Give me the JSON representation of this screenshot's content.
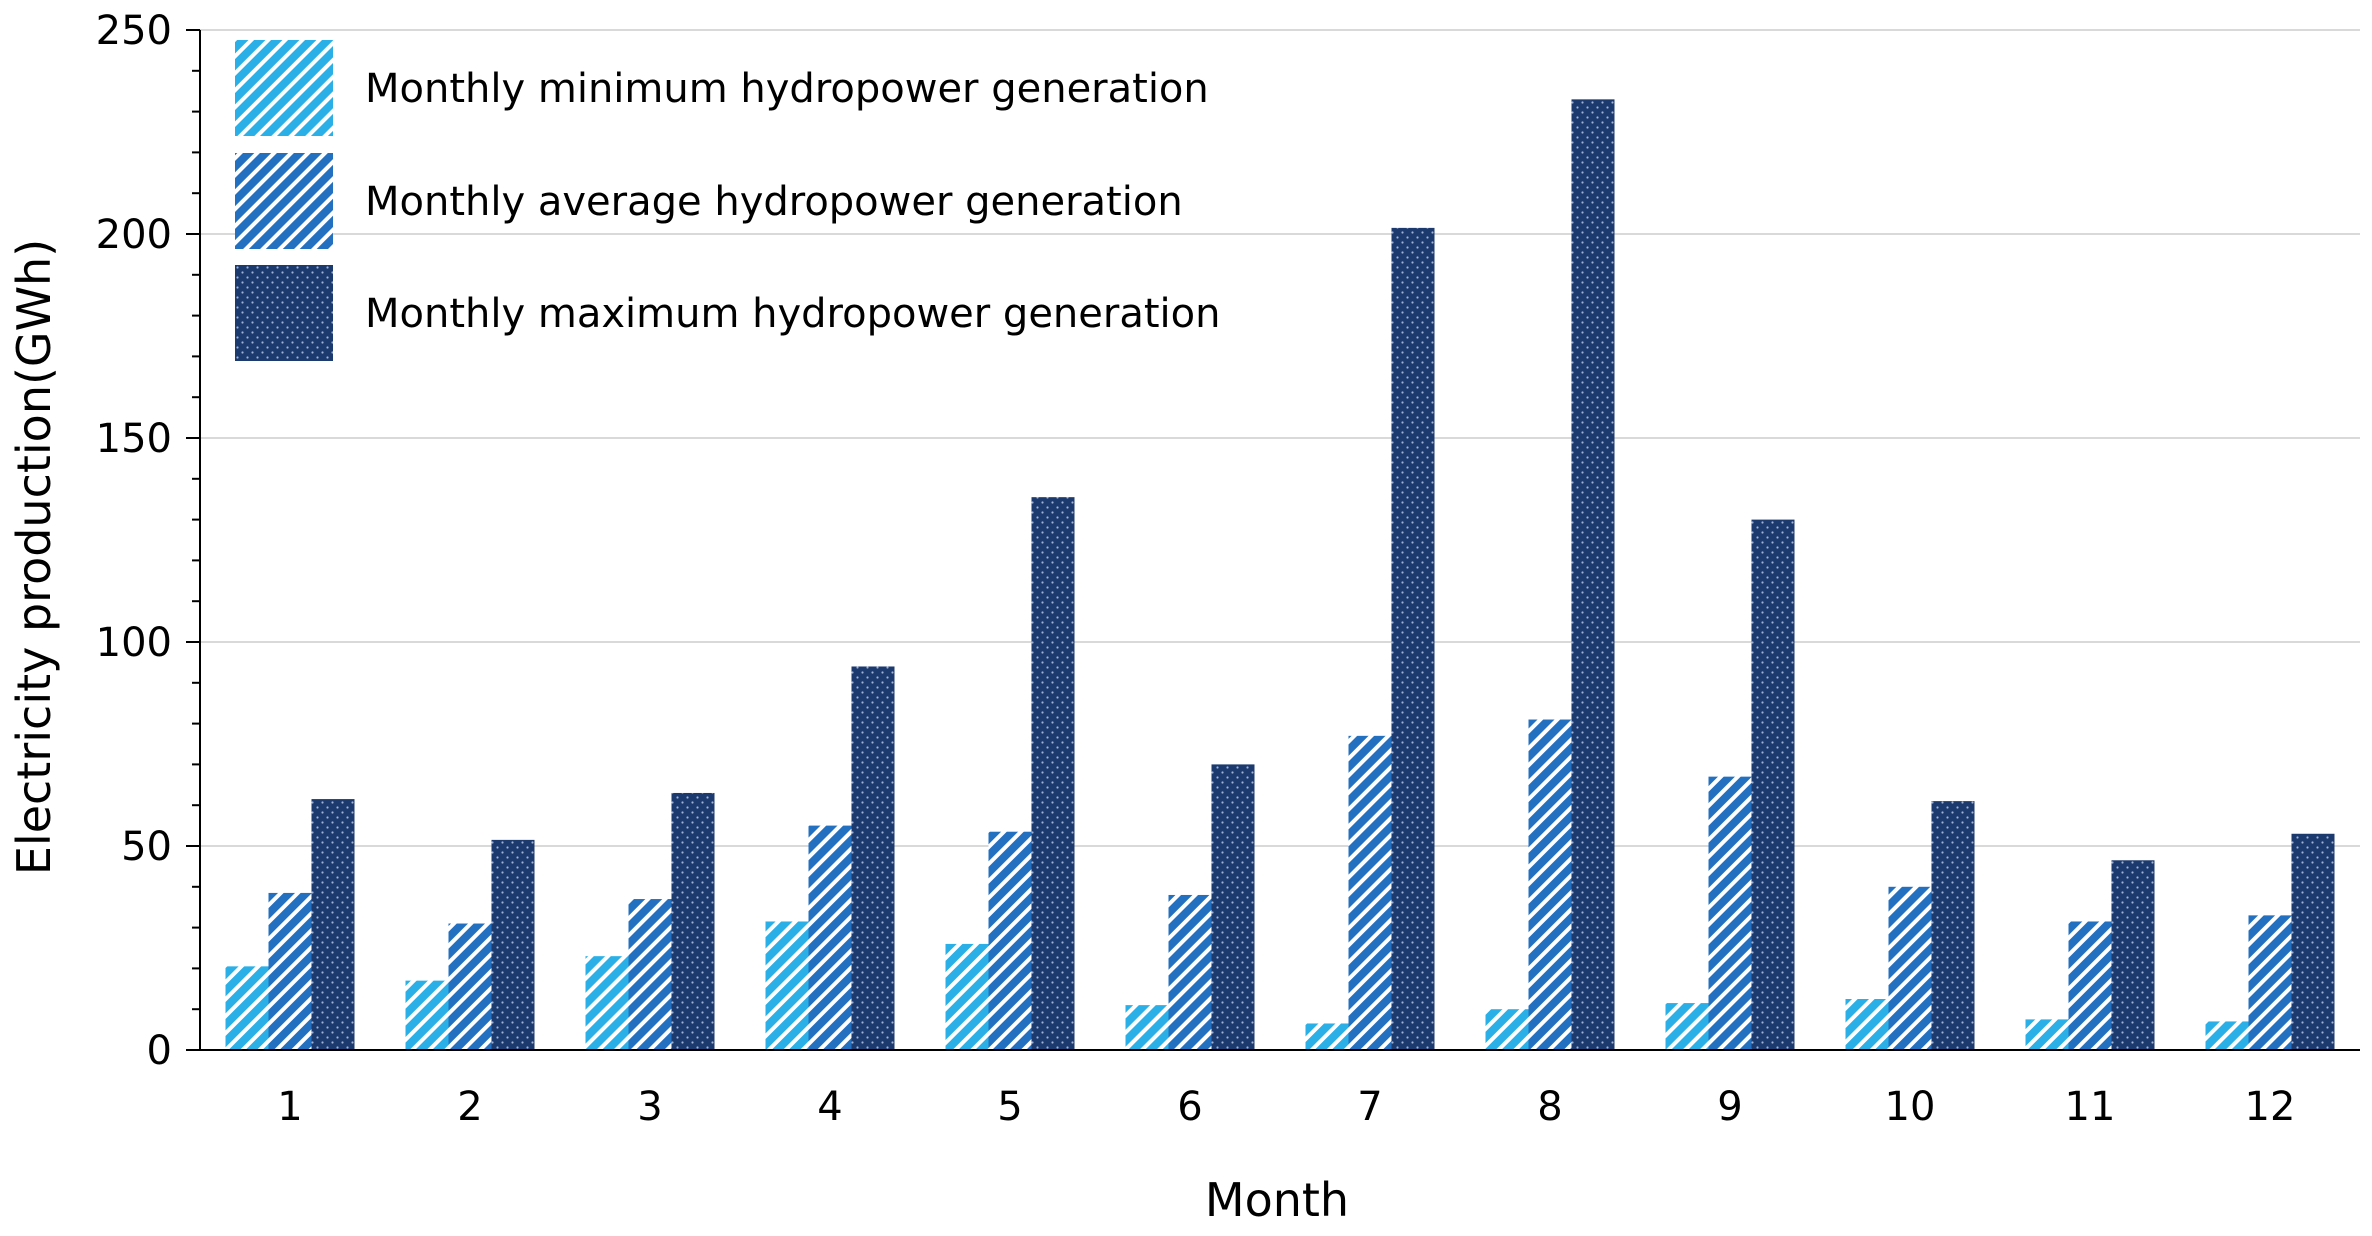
{
  "chart_data": {
    "type": "bar",
    "title": "",
    "xlabel": "Month",
    "ylabel": "Electricity production(GWh)",
    "categories": [
      "1",
      "2",
      "3",
      "4",
      "5",
      "6",
      "7",
      "8",
      "9",
      "10",
      "11",
      "12"
    ],
    "series": [
      {
        "name": "Monthly minimum hydropower generation",
        "color": "#2ab0e6",
        "pattern": "diagonal-stripes",
        "values": [
          20.5,
          17,
          23,
          31.5,
          26,
          11,
          6.5,
          10,
          11.5,
          12.5,
          7.5,
          7
        ]
      },
      {
        "name": "Monthly average hydropower generation",
        "color": "#2470c0",
        "pattern": "diagonal-stripes",
        "values": [
          38.5,
          31,
          37,
          55,
          53.5,
          38,
          77,
          81,
          67,
          40,
          31.5,
          33
        ]
      },
      {
        "name": "Monthly maximum hydropower generation",
        "color": "#1c3a6e",
        "pattern": "dotted",
        "values": [
          61.5,
          51.5,
          63,
          94,
          135.5,
          70,
          201.5,
          233,
          130,
          61,
          46.5,
          53
        ]
      }
    ],
    "ylim": [
      0,
      250
    ],
    "yticks": [
      0,
      50,
      100,
      150,
      200,
      250
    ],
    "grid": true,
    "legend_position": "top-left"
  }
}
